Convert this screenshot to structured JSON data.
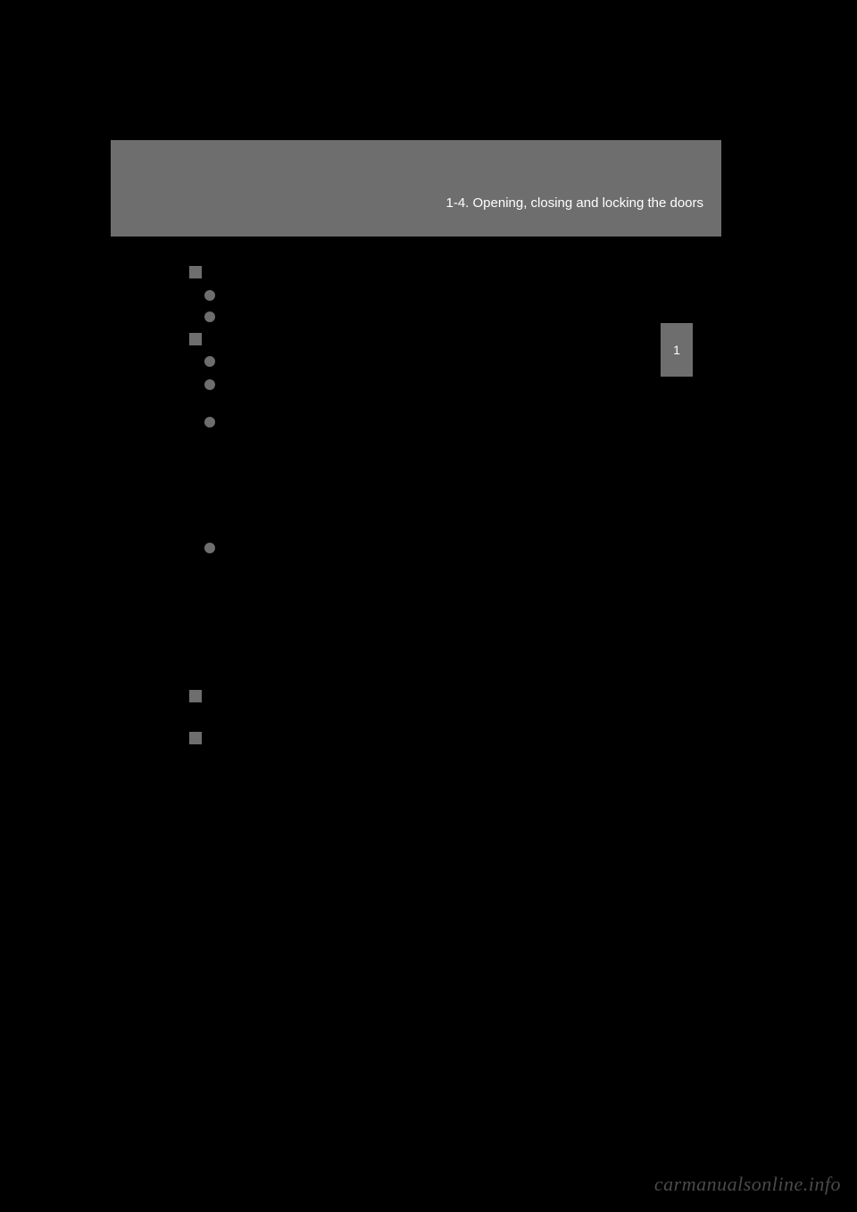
{
  "header": {
    "section_title": "1-4. Opening, closing and locking the doors"
  },
  "side_tab": {
    "number": "1"
  },
  "watermark": "carmanualsonline.info"
}
